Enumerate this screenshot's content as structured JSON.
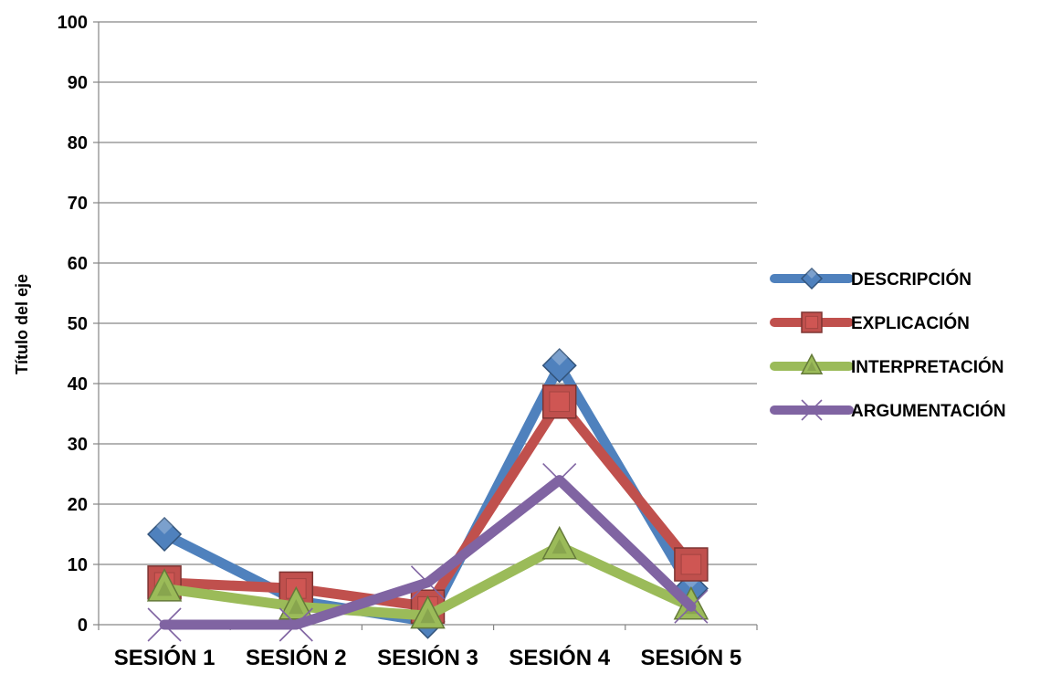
{
  "chart_data": {
    "type": "line",
    "title": "",
    "xlabel": "",
    "ylabel": "Título del eje",
    "categories": [
      "SESIÓN 1",
      "SESIÓN 2",
      "SESIÓN 3",
      "SESIÓN 4",
      "SESIÓN 5"
    ],
    "ylim": [
      0,
      100
    ],
    "yticks": [
      0,
      10,
      20,
      30,
      40,
      50,
      60,
      70,
      80,
      90,
      100
    ],
    "grid": true,
    "legend_position": "right",
    "series": [
      {
        "name": "DESCRIPCIÓN",
        "values": [
          15,
          4,
          0.5,
          43,
          6
        ],
        "color": "#4f81bd",
        "marker": "diamond"
      },
      {
        "name": "EXPLICACIÓN",
        "values": [
          7,
          6,
          3,
          37,
          10
        ],
        "color": "#c0504d",
        "marker": "square"
      },
      {
        "name": "INTERPRETACIÓN",
        "values": [
          6,
          3,
          1.5,
          13,
          3
        ],
        "color": "#9bbb59",
        "marker": "triangle"
      },
      {
        "name": "ARGUMENTACIÓN",
        "values": [
          0,
          0,
          7,
          24,
          3
        ],
        "color": "#8064a2",
        "marker": "x"
      }
    ]
  }
}
